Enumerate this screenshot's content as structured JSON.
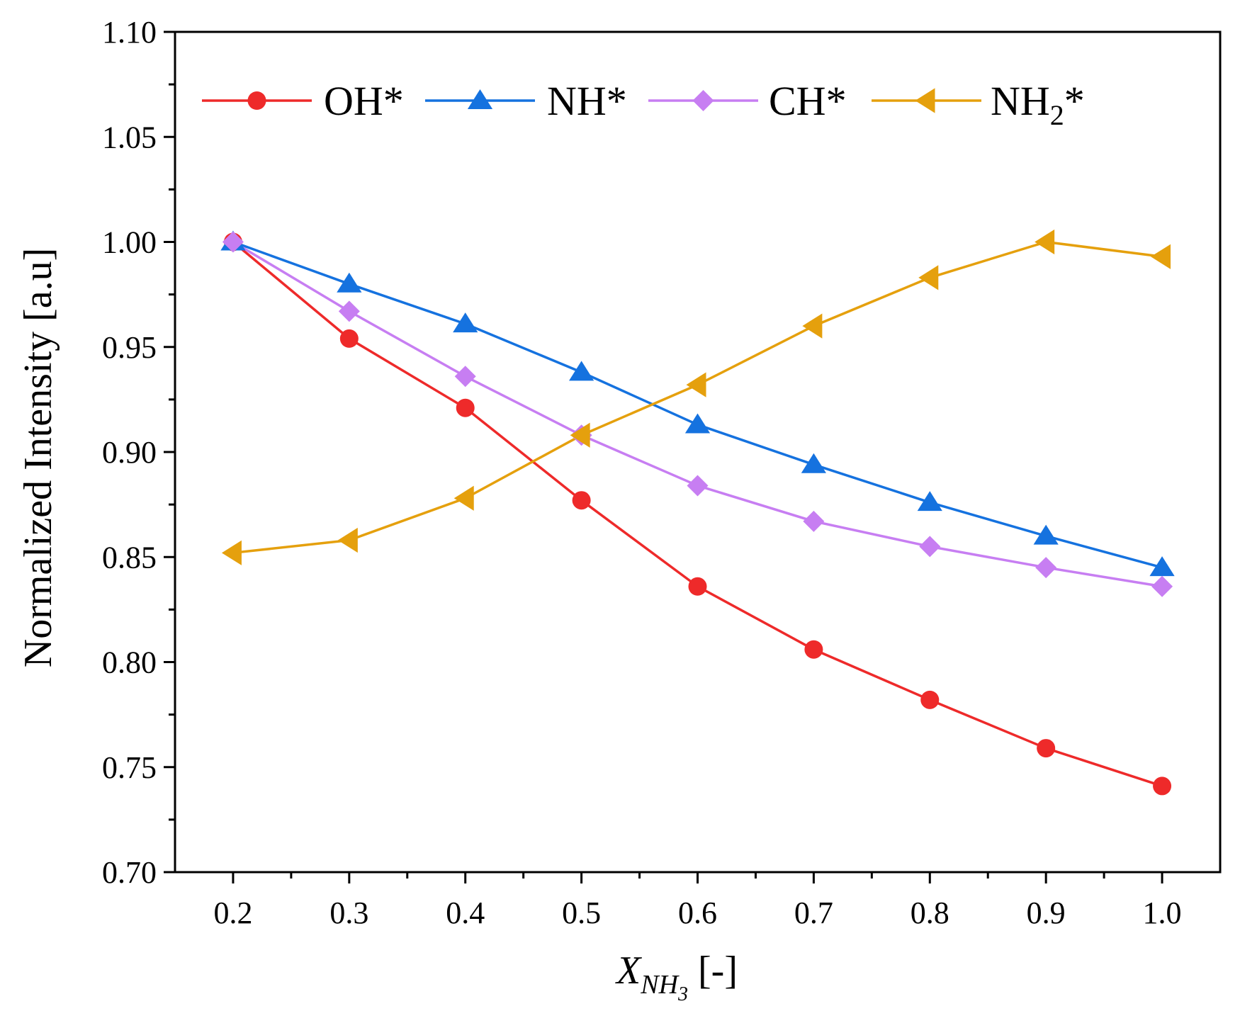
{
  "chart_data": {
    "type": "line",
    "title": "",
    "xlabel": {
      "main": "X",
      "sub": "NH",
      "subsub": "3",
      "unit": "[-]"
    },
    "ylabel": "Normalized Intensity [a.u]",
    "xlim": [
      0.15,
      1.05
    ],
    "ylim": [
      0.7,
      1.1
    ],
    "xticks": [
      0.2,
      0.3,
      0.4,
      0.5,
      0.6,
      0.7,
      0.8,
      0.9,
      1.0
    ],
    "xtick_labels": [
      "0.2",
      "0.3",
      "0.4",
      "0.5",
      "0.6",
      "0.7",
      "0.8",
      "0.9",
      "1.0"
    ],
    "yticks": [
      0.7,
      0.75,
      0.8,
      0.85,
      0.9,
      0.95,
      1.0,
      1.05,
      1.1
    ],
    "ytick_labels": [
      "0.70",
      "0.75",
      "0.80",
      "0.85",
      "0.90",
      "0.95",
      "1.00",
      "1.05",
      "1.10"
    ],
    "grid": false,
    "legend_position": "top",
    "x": [
      0.2,
      0.3,
      0.4,
      0.5,
      0.6,
      0.7,
      0.8,
      0.9,
      1.0
    ],
    "series": [
      {
        "name": "OH*",
        "name_main": "OH",
        "name_sub": "",
        "name_suffix": "*",
        "color": "#ee2a2a",
        "marker": "circle",
        "values": [
          1.0,
          0.954,
          0.921,
          0.877,
          0.836,
          0.806,
          0.782,
          0.759,
          0.741
        ]
      },
      {
        "name": "NH*",
        "name_main": "NH",
        "name_sub": "",
        "name_suffix": "*",
        "color": "#1572df",
        "marker": "triangle-up",
        "values": [
          1.0,
          0.98,
          0.961,
          0.938,
          0.913,
          0.894,
          0.876,
          0.86,
          0.845
        ]
      },
      {
        "name": "CH*",
        "name_main": "CH",
        "name_sub": "",
        "name_suffix": "*",
        "color": "#c77ef2",
        "marker": "diamond",
        "values": [
          1.0,
          0.967,
          0.936,
          0.908,
          0.884,
          0.867,
          0.855,
          0.845,
          0.836
        ]
      },
      {
        "name": "NH2*",
        "name_main": "NH",
        "name_sub": "2",
        "name_suffix": "*",
        "color": "#e5a00d",
        "marker": "triangle-left",
        "values": [
          0.852,
          0.858,
          0.878,
          0.908,
          0.932,
          0.96,
          0.983,
          1.0,
          0.993
        ]
      }
    ]
  }
}
